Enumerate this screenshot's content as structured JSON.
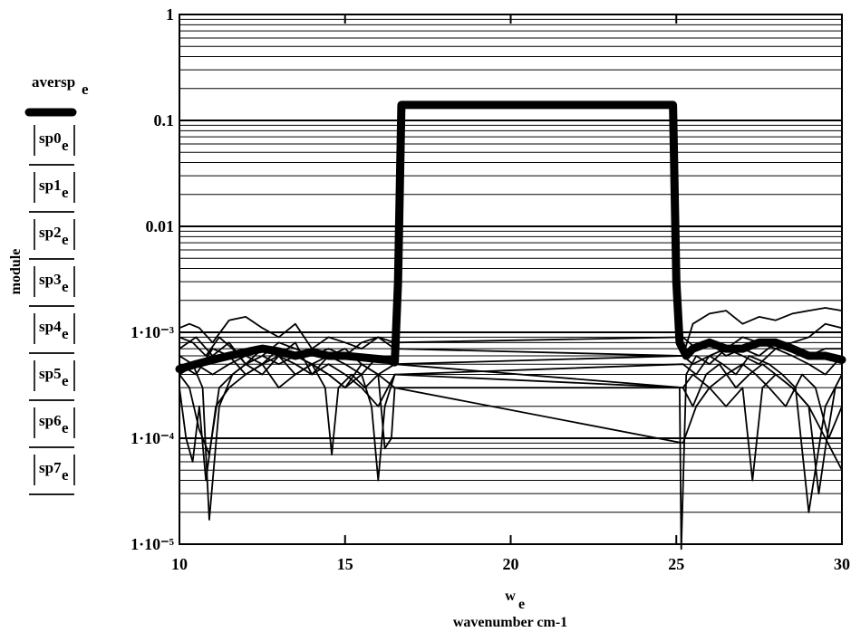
{
  "chart_data": {
    "type": "line",
    "yscale": "log",
    "xlim": [
      10,
      30
    ],
    "ylim": [
      1e-05,
      1
    ],
    "grid": "horizontal log minor lines",
    "x_ticks": [
      "10",
      "15",
      "20",
      "25",
      "30"
    ],
    "y_ticks": [
      "1",
      "0.1",
      "0.01",
      "1·10⁻³",
      "1·10⁻⁴",
      "1·10⁻⁵"
    ],
    "xlabel": "w",
    "xlabel_sub": "e",
    "xlabel2": "wavenumber cm-1",
    "ylabel": "module",
    "legend_placement": "left",
    "legend_expressions": [
      {
        "base": "aversp",
        "sub": "e",
        "abs": false,
        "style": "thick"
      },
      {
        "base": "sp0",
        "sub": "e",
        "abs": true,
        "style": "thin"
      },
      {
        "base": "sp1",
        "sub": "e",
        "abs": true,
        "style": "thin"
      },
      {
        "base": "sp2",
        "sub": "e",
        "abs": true,
        "style": "thin"
      },
      {
        "base": "sp3",
        "sub": "e",
        "abs": true,
        "style": "thin"
      },
      {
        "base": "sp4",
        "sub": "e",
        "abs": true,
        "style": "thin"
      },
      {
        "base": "sp5",
        "sub": "e",
        "abs": true,
        "style": "thin"
      },
      {
        "base": "sp6",
        "sub": "e",
        "abs": true,
        "style": "thin"
      },
      {
        "base": "sp7",
        "sub": "e",
        "abs": true,
        "style": "thin"
      }
    ],
    "series": [
      {
        "x": [
          10,
          10.5,
          11,
          11.5,
          12,
          12.5,
          13,
          13.5,
          14,
          14.5,
          15,
          15.5,
          16,
          16.3,
          16.5,
          16.6,
          16.7,
          17,
          18,
          19,
          20,
          21,
          22,
          23,
          24,
          24.7,
          24.9,
          25.0,
          25.1,
          25.3,
          25.5,
          26,
          26.5,
          27,
          27.5,
          28,
          28.5,
          29,
          29.5,
          30
        ],
        "y": [
          0.00045,
          0.0005,
          0.00055,
          0.0006,
          0.00065,
          0.0007,
          0.00066,
          0.0006,
          0.00065,
          0.0006,
          0.0006,
          0.00058,
          0.00056,
          0.00055,
          0.00052,
          0.003,
          0.14,
          0.14,
          0.14,
          0.14,
          0.14,
          0.14,
          0.14,
          0.14,
          0.14,
          0.14,
          0.14,
          0.003,
          0.0008,
          0.0006,
          0.0007,
          0.0008,
          0.0007,
          0.0007,
          0.0008,
          0.0008,
          0.0007,
          0.0006,
          0.0006,
          0.00055
        ]
      },
      {
        "x": [
          10,
          10.3,
          10.6,
          11,
          11.5,
          12,
          12.5,
          13,
          13.5,
          14,
          14.5,
          15,
          15.5,
          16,
          16.5,
          25.2,
          25.5,
          26,
          26.5,
          27,
          27.5,
          28,
          28.5,
          29,
          29.5,
          30
        ],
        "y": [
          0.0011,
          0.0012,
          0.0011,
          0.0008,
          0.0013,
          0.0014,
          0.0011,
          0.0009,
          0.0012,
          0.0007,
          0.0009,
          0.0008,
          0.0007,
          0.0009,
          0.0007,
          0.0006,
          0.0012,
          0.0015,
          0.0016,
          0.0012,
          0.0014,
          0.0013,
          0.0015,
          0.0016,
          0.0017,
          0.0016
        ]
      },
      {
        "x": [
          10,
          10.4,
          10.8,
          11.2,
          11.6,
          12,
          12.5,
          13,
          13.5,
          14,
          14.5,
          15,
          15.5,
          16,
          16.5,
          25.2,
          25.6,
          26,
          26.5,
          27,
          27.5,
          28,
          28.5,
          29,
          29.5,
          30
        ],
        "y": [
          0.0009,
          0.0008,
          0.0006,
          0.0009,
          0.0007,
          0.0005,
          0.0006,
          0.0008,
          0.0007,
          0.0006,
          0.0007,
          0.0006,
          0.0008,
          0.0009,
          0.0008,
          0.0009,
          0.0007,
          0.0008,
          0.0006,
          0.0007,
          0.0006,
          0.0008,
          0.0007,
          0.0006,
          0.0007,
          0.0007
        ]
      },
      {
        "x": [
          10,
          10.3,
          10.6,
          10.9,
          11.2,
          11.6,
          12,
          12.5,
          13,
          13.5,
          14,
          14.5,
          15,
          15.5,
          16,
          16.5,
          25.2,
          25.5,
          25.9,
          26.3,
          26.8,
          27.2,
          27.6,
          28,
          28.5,
          29,
          29.5,
          30
        ],
        "y": [
          0.0004,
          0.0003,
          0.00012,
          7e-05,
          0.0003,
          0.0004,
          0.0005,
          0.0004,
          0.0006,
          0.0005,
          0.0004,
          0.0005,
          0.0004,
          0.0003,
          0.0002,
          0.0004,
          0.0003,
          0.0002,
          0.0004,
          0.0005,
          0.0003,
          0.0004,
          0.0005,
          0.0004,
          0.0003,
          0.0002,
          0.0001,
          5e-05
        ]
      },
      {
        "x": [
          10,
          10.2,
          10.4,
          10.6,
          10.8,
          11.1,
          11.5,
          12,
          12.5,
          13,
          13.5,
          14,
          14.5,
          15,
          15.5,
          16,
          16.5,
          25.2,
          25.6,
          26,
          26.5,
          27,
          27.4,
          27.8,
          28.3,
          28.8,
          29.2,
          29.6,
          30
        ],
        "y": [
          0.0003,
          0.0001,
          6e-05,
          0.0002,
          4e-05,
          0.0002,
          0.0003,
          0.0004,
          0.0005,
          0.0003,
          0.0004,
          0.0005,
          0.0004,
          0.0003,
          0.0005,
          0.0004,
          0.0003,
          9e-05,
          0.0002,
          0.0003,
          0.0004,
          0.0005,
          0.0004,
          0.0003,
          0.0002,
          0.0004,
          0.0003,
          0.0001,
          0.0002
        ]
      },
      {
        "x": [
          10,
          10.4,
          10.7,
          10.9,
          11.2,
          11.6,
          12,
          12.5,
          13,
          13.5,
          14,
          14.4,
          14.6,
          14.8,
          15.2,
          15.6,
          16,
          16.5,
          25.2,
          25.5,
          26,
          26.5,
          27,
          27.3,
          27.6,
          28,
          28.5,
          29,
          29.3,
          29.5,
          29.8,
          30
        ],
        "y": [
          0.0006,
          0.0005,
          0.0003,
          1.7e-05,
          0.0002,
          0.0004,
          0.0005,
          0.0006,
          0.0005,
          0.0006,
          0.0005,
          0.0003,
          7e-05,
          0.0003,
          0.0004,
          0.0003,
          0.0004,
          0.0005,
          0.0003,
          0.0004,
          0.0003,
          0.0002,
          0.0003,
          4e-05,
          0.0003,
          0.0004,
          0.0003,
          0.0002,
          3e-05,
          8e-05,
          0.0003,
          0.0003
        ]
      },
      {
        "x": [
          10,
          10.5,
          11,
          11.5,
          12,
          12.5,
          13,
          13.5,
          14,
          14.5,
          15,
          15.5,
          15.8,
          16,
          16.2,
          16.5,
          25.2,
          25.6,
          26,
          26.4,
          26.8,
          27.2,
          27.8,
          28.2,
          28.6,
          29,
          29.5,
          30
        ],
        "y": [
          0.0005,
          0.0004,
          0.0007,
          0.0006,
          0.0004,
          0.0005,
          0.0006,
          0.0004,
          0.0005,
          0.0004,
          0.0003,
          0.0004,
          0.0002,
          4e-05,
          0.0002,
          0.0004,
          0.0005,
          0.0004,
          0.0006,
          0.0005,
          0.0004,
          0.0006,
          0.0005,
          0.0004,
          0.0003,
          2e-05,
          0.0002,
          0.0004
        ]
      },
      {
        "x": [
          10,
          10.5,
          11,
          11.5,
          12,
          12.5,
          13,
          13.5,
          14,
          14.5,
          15,
          15.5,
          16,
          16.2,
          16.4,
          16.5,
          25.1,
          25.15,
          25.3,
          25.6,
          26,
          26.5,
          27,
          27.5,
          28,
          28.5,
          29,
          29.5,
          30
        ],
        "y": [
          0.0007,
          0.0009,
          0.0006,
          0.0008,
          0.0005,
          0.0007,
          0.0006,
          0.0008,
          0.0004,
          0.0006,
          0.0007,
          0.0005,
          0.0004,
          8e-05,
          0.0001,
          0.0003,
          0.0003,
          9e-06,
          0.0004,
          0.0006,
          0.0005,
          0.0007,
          0.0006,
          0.0005,
          0.0007,
          0.0006,
          0.0005,
          0.0004,
          0.0006
        ]
      },
      {
        "x": [
          10,
          10.5,
          11,
          11.5,
          12,
          12.5,
          13,
          13.5,
          14,
          14.5,
          15,
          15.5,
          16,
          16.5,
          25.2,
          25.5,
          26,
          26.5,
          27,
          27.5,
          28,
          28.5,
          29,
          29.5,
          30
        ],
        "y": [
          0.0004,
          0.0005,
          0.0004,
          0.0005,
          0.0006,
          0.0005,
          0.0007,
          0.0006,
          0.0005,
          0.0006,
          0.0005,
          0.0004,
          0.0006,
          0.0005,
          0.0006,
          0.0005,
          0.0006,
          0.0007,
          0.0009,
          0.0008,
          0.0007,
          0.0008,
          0.0009,
          0.0012,
          0.0011
        ]
      }
    ]
  }
}
